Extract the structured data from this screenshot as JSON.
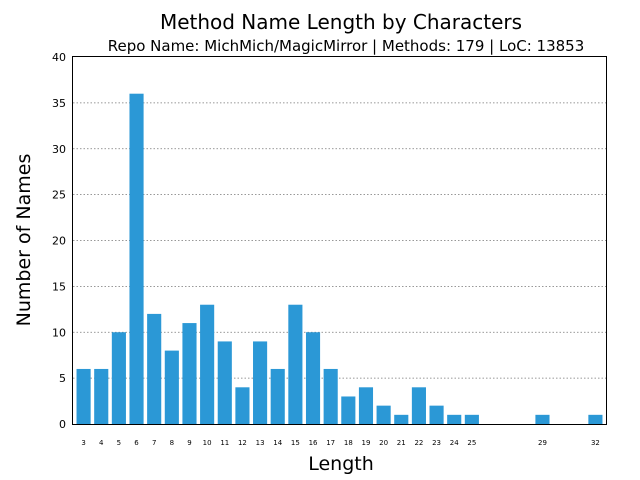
{
  "chart_data": {
    "type": "bar",
    "title": "Method Name Length by Characters",
    "subtitle": "Repo Name: MichMich/MagicMirror | Methods: 179 | LoC: 13853",
    "xlabel": "Length",
    "ylabel": "Number of Names",
    "x": [
      3,
      4,
      5,
      6,
      7,
      8,
      9,
      10,
      11,
      12,
      13,
      14,
      15,
      16,
      17,
      18,
      19,
      20,
      21,
      22,
      23,
      24,
      25,
      29,
      32
    ],
    "values": [
      6,
      6,
      10,
      36,
      12,
      8,
      11,
      13,
      9,
      4,
      9,
      6,
      13,
      10,
      6,
      3,
      4,
      2,
      1,
      4,
      2,
      1,
      1,
      1,
      1
    ],
    "xlim": [
      2.4,
      32.6
    ],
    "ylim": [
      0,
      40
    ],
    "yticks": [
      0,
      5,
      10,
      15,
      20,
      25,
      30,
      35,
      40
    ],
    "grid": true,
    "bar_color": "#2b98d6"
  }
}
